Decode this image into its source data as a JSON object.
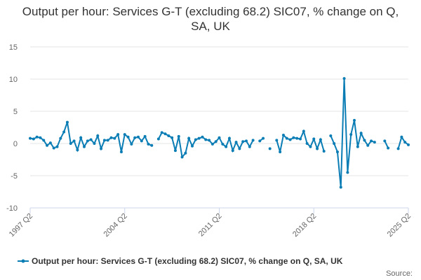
{
  "chart_data": {
    "type": "line",
    "title": "Output per hour: Services G-T (excluding 68.2) SIC07, % change on Q, SA, UK",
    "source": "Source:",
    "categories": [
      "1997 Q2",
      null,
      null,
      null,
      null,
      null,
      null,
      null,
      null,
      null,
      null,
      null,
      null,
      null,
      null,
      null,
      null,
      null,
      null,
      null,
      null,
      null,
      null,
      null,
      null,
      null,
      null,
      null,
      "2004 Q2",
      null,
      null,
      null,
      null,
      null,
      null,
      null,
      null,
      null,
      null,
      null,
      null,
      null,
      null,
      null,
      null,
      null,
      null,
      null,
      null,
      null,
      null,
      null,
      null,
      null,
      null,
      null,
      "2011 Q2",
      null,
      null,
      null,
      null,
      null,
      null,
      null,
      null,
      null,
      null,
      null,
      null,
      null,
      null,
      null,
      null,
      null,
      null,
      null,
      null,
      null,
      null,
      null,
      null,
      null,
      null,
      null,
      "2018 Q2",
      null,
      null,
      null,
      null,
      null,
      null,
      null,
      null,
      null,
      null,
      null,
      null,
      null,
      null,
      null,
      null,
      null,
      null,
      null,
      null,
      null,
      null,
      null,
      null,
      null,
      null,
      null,
      "2025 Q2"
    ],
    "series": [
      {
        "name": "Output per hour: Services G-T (excluding 68.2) SIC07, % change on Q, SA, UK",
        "color": "#0b7db5",
        "values": [
          0.8,
          0.7,
          1.0,
          0.9,
          0.5,
          -0.3,
          0.1,
          -0.7,
          -0.5,
          0.8,
          1.8,
          3.3,
          0,
          0.4,
          -1.0,
          0.9,
          -0.5,
          0.4,
          0.6,
          0,
          1.2,
          -0.8,
          0.5,
          0.5,
          0.9,
          0.8,
          1.4,
          -1.3,
          1.4,
          1.0,
          -0.1,
          0.9,
          1.0,
          0.4,
          1.1,
          -0.1,
          -0.3,
          null,
          0.7,
          1.7,
          1.5,
          1.2,
          0.9,
          -1.1,
          1.1,
          -2.1,
          -1.5,
          0.8,
          -0.4,
          0.6,
          0.8,
          1.0,
          0.6,
          0.5,
          -0.1,
          0.3,
          0.9,
          -0.1,
          -0.5,
          0.8,
          -1.1,
          0.2,
          -0.8,
          0.3,
          0.4,
          -0.5,
          0.5,
          null,
          0.4,
          0.8,
          null,
          -0.8,
          null,
          0.5,
          -1.3,
          1.3,
          0.8,
          0.6,
          0.9,
          0.8,
          0.7,
          1.9,
          0,
          -0.5,
          0.7,
          -0.8,
          0.6,
          -1.2,
          null,
          1.2,
          0,
          -1.3,
          -6.8,
          10.1,
          -4.5,
          1.4,
          3.6,
          -0.5,
          1.6,
          0.5,
          -0.3,
          0.4,
          0.2,
          null,
          null,
          0.4,
          -0.7,
          null,
          null,
          -0.8,
          1.0,
          0.2,
          -0.2
        ]
      }
    ],
    "ylim": [
      -10,
      15
    ],
    "yticks": [
      -10,
      -5,
      0,
      5,
      10,
      15
    ],
    "grid": true,
    "legend": "bottom"
  }
}
